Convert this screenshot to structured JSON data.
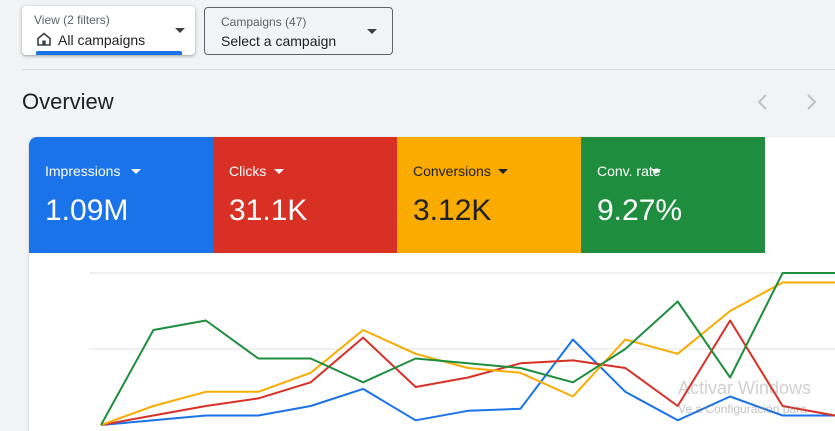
{
  "filters": {
    "view": {
      "label": "View (2 filters)",
      "value": "All campaigns"
    },
    "campaigns": {
      "label": "Campaigns (47)",
      "value": "Select a campaign"
    }
  },
  "overview": {
    "title": "Overview"
  },
  "metrics": [
    {
      "label": "Impressions",
      "value": "1.09M",
      "color": "#1a73e8",
      "text_color": "#ffffff"
    },
    {
      "label": "Clicks",
      "value": "31.1K",
      "color": "#d93025",
      "text_color": "#ffffff"
    },
    {
      "label": "Conversions",
      "value": "3.12K",
      "color": "#f9ab00",
      "text_color": "#202124"
    },
    {
      "label": "Conv. rate",
      "value": "9.27%",
      "color": "#1e8e3e",
      "text_color": "#ffffff"
    }
  ],
  "watermark": {
    "line1": "Activar Windows",
    "line2": "Ve a Configuración para"
  },
  "chart_data": {
    "type": "line",
    "grid": true,
    "series": [
      {
        "color": "#1a73e8",
        "values": [
          0,
          0.05,
          0.1,
          0.1,
          0.2,
          0.38,
          0.05,
          0.15,
          0.17,
          0.9,
          0.35,
          0.05,
          0.3,
          0.1,
          0.1
        ]
      },
      {
        "color": "#d93025",
        "values": [
          0,
          0.1,
          0.2,
          0.28,
          0.45,
          0.92,
          0.4,
          0.5,
          0.65,
          0.68,
          0.6,
          0.2,
          1.1,
          0.2,
          0.1
        ]
      },
      {
        "color": "#f9ab00",
        "values": [
          0,
          0.2,
          0.35,
          0.35,
          0.55,
          1.0,
          0.75,
          0.6,
          0.55,
          0.3,
          0.9,
          0.75,
          1.2,
          1.5,
          1.5
        ]
      },
      {
        "color": "#1e8e3e",
        "values": [
          0,
          1.0,
          1.1,
          0.7,
          0.7,
          0.45,
          0.7,
          0.65,
          0.6,
          0.45,
          0.8,
          1.3,
          0.5,
          1.6,
          1.6
        ]
      }
    ]
  }
}
